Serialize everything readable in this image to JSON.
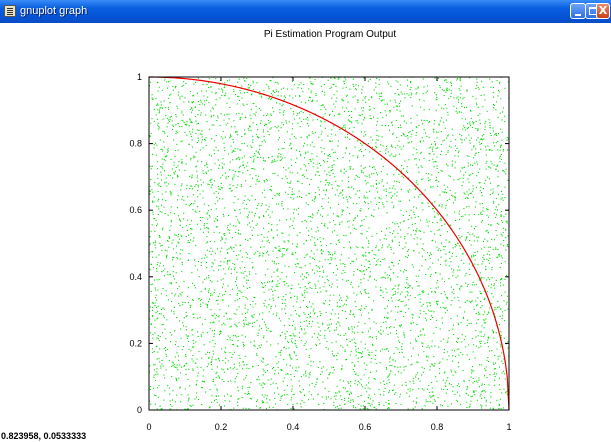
{
  "window": {
    "title": "gnuplot graph",
    "app_icon": "gnuplot-app-icon",
    "controls": {
      "minimize": "minimize-icon",
      "maximize": "maximize-icon",
      "close": "close-icon",
      "close_glyph": "X"
    }
  },
  "status": {
    "coordinates": "0.823958,  0.0533333"
  },
  "chart_data": {
    "type": "scatter",
    "title": "Pi Estimation Program Output",
    "xlabel": "",
    "ylabel": "",
    "xlim": [
      0,
      1
    ],
    "ylim": [
      0,
      1
    ],
    "x_ticks": [
      "0",
      "0.2",
      "0.4",
      "0.6",
      "0.8",
      "1"
    ],
    "y_ticks": [
      "0",
      "0.2",
      "0.4",
      "0.6",
      "0.8",
      "1"
    ],
    "grid": false,
    "legend": "none",
    "series": [
      {
        "kind": "points",
        "color": "#00dd00",
        "distribution": "uniform random over [0,1] x [0,1]",
        "approx_count": 5000
      },
      {
        "kind": "curve",
        "color": "#ee0000",
        "equation": "y = sqrt(1 - x^2)",
        "domain": [
          0,
          1
        ]
      }
    ]
  }
}
